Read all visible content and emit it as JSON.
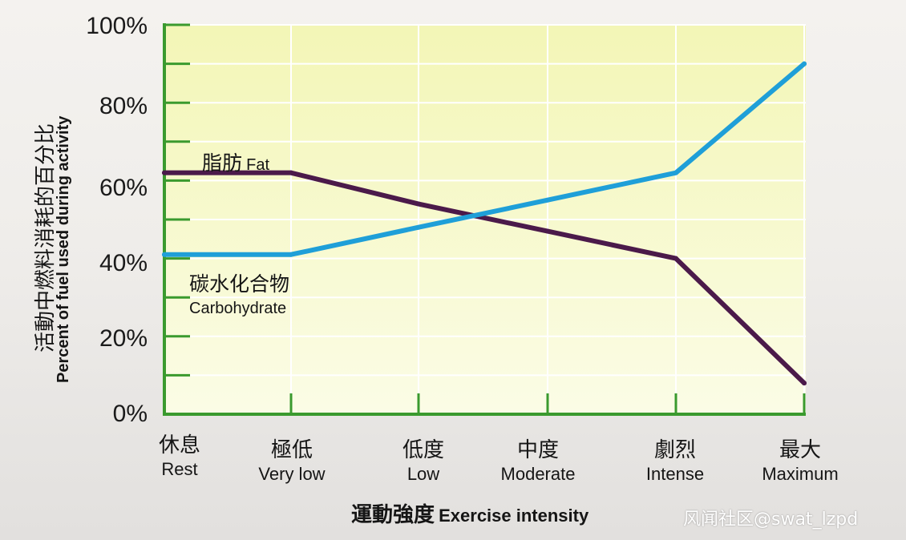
{
  "chart_data": {
    "type": "line",
    "categories": [
      {
        "zh": "休息",
        "en": "Rest"
      },
      {
        "zh": "極低",
        "en": "Very low"
      },
      {
        "zh": "低度",
        "en": "Low"
      },
      {
        "zh": "中度",
        "en": "Moderate"
      },
      {
        "zh": "劇烈",
        "en": "Intense"
      },
      {
        "zh": "最大",
        "en": "Maximum"
      }
    ],
    "series": [
      {
        "name_zh": "脂肪",
        "name_en": "Fat",
        "color": "#4b1a4a",
        "values": [
          62,
          62,
          54,
          47,
          40,
          8
        ]
      },
      {
        "name_zh": "碳水化合物",
        "name_en": "Carbohydrate",
        "color": "#1f9fd8",
        "values": [
          41,
          41,
          48,
          55,
          62,
          90
        ]
      }
    ],
    "ylim": [
      0,
      100
    ],
    "yticks": [
      "0%",
      "20%",
      "40%",
      "60%",
      "80%",
      "100%"
    ],
    "ylabel_zh": "活動中燃料消耗的百分比",
    "ylabel_en": "Percent of fuel used during activity",
    "xlabel_zh": "運動強度",
    "xlabel_en": "Exercise intensity",
    "grid": true,
    "axis_color": "#3a9a2e",
    "plot_bg_top": "#f3f6b6",
    "plot_bg_bottom": "#fbfce6"
  },
  "watermark": "风闻社区@swat_lzpd"
}
